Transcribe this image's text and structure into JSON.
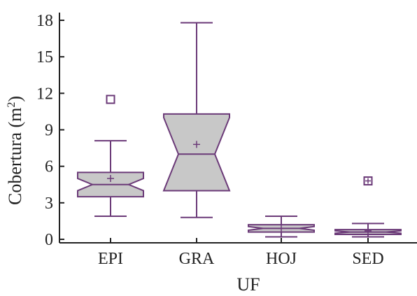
{
  "chart_data": {
    "type": "boxplot",
    "title": "",
    "xlabel": "UF",
    "ylabel": "Cobertura (m²)",
    "ylim": [
      0,
      18.5
    ],
    "yticks": [
      0,
      3,
      6,
      9,
      12,
      15,
      18
    ],
    "notched": true,
    "grid": false,
    "box_fill": "#c8c8c8",
    "line_color": "#6b3a78",
    "axis_color": "#222222",
    "categories": [
      "EPI",
      "GRA",
      "HOJ",
      "SED"
    ],
    "boxes": [
      {
        "category": "EPI",
        "whisker_low": 1.9,
        "q1": 3.5,
        "median": 4.5,
        "q3": 5.5,
        "whisker_high": 8.1,
        "notch_low": 4.0,
        "notch_high": 5.0,
        "mean": 5.0,
        "outliers": [
          11.5
        ]
      },
      {
        "category": "GRA",
        "whisker_low": 1.8,
        "q1": 4.0,
        "median": 7.0,
        "q3": 10.3,
        "whisker_high": 17.8,
        "notch_low": 4.0,
        "notch_high": 10.0,
        "mean": 7.8,
        "outliers": []
      },
      {
        "category": "HOJ",
        "whisker_low": 0.2,
        "q1": 0.6,
        "median": 0.9,
        "q3": 1.2,
        "whisker_high": 1.9,
        "notch_low": 0.75,
        "notch_high": 1.05,
        "mean": 0.9,
        "outliers": []
      },
      {
        "category": "SED",
        "whisker_low": 0.2,
        "q1": 0.4,
        "median": 0.6,
        "q3": 0.8,
        "whisker_high": 1.3,
        "notch_low": 0.5,
        "notch_high": 0.7,
        "mean": 0.7,
        "outliers": [
          4.8
        ]
      }
    ]
  }
}
